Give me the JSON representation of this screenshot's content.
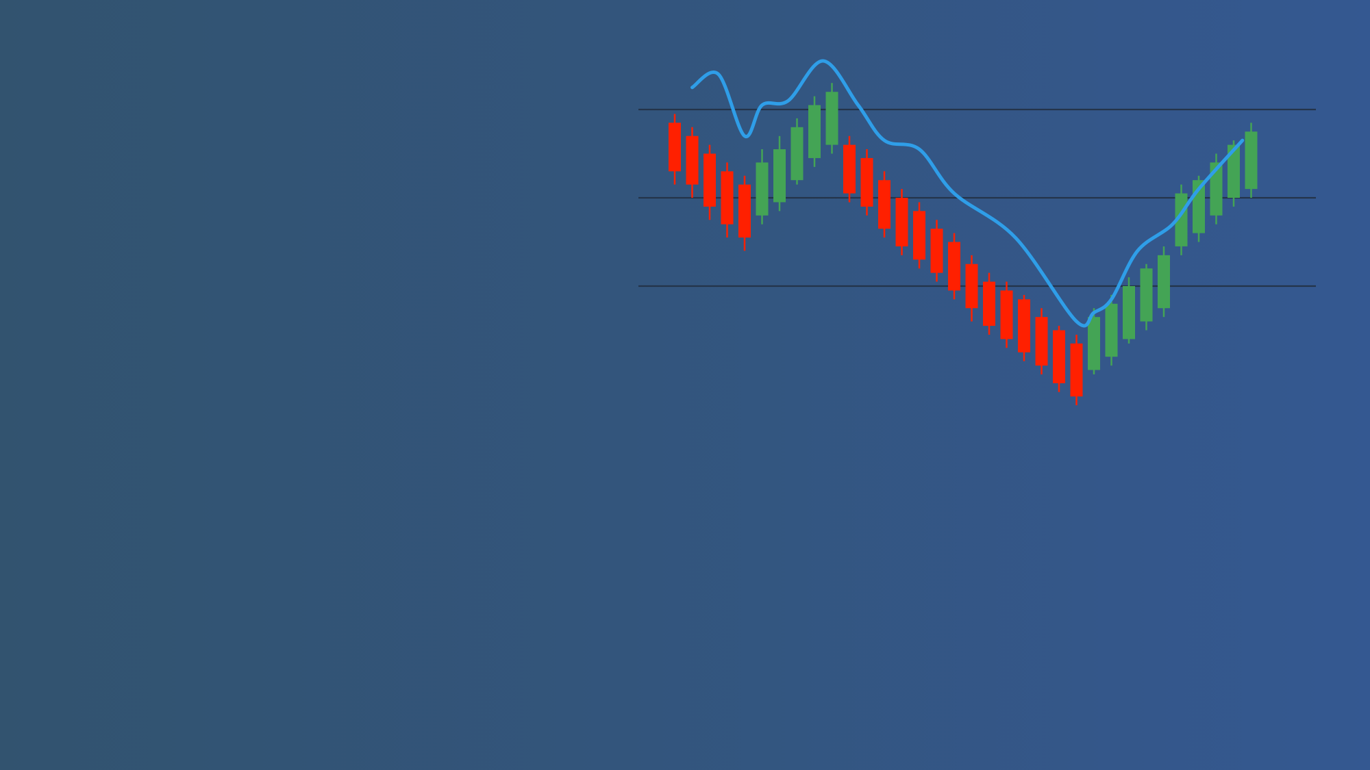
{
  "chart_data": {
    "type": "candlestick",
    "title": "",
    "xlabel": "",
    "ylabel": "",
    "ylim": [
      0,
      100
    ],
    "grid_lines": [
      90,
      70,
      50
    ],
    "colors": {
      "up": "#44a455",
      "down": "#ff2000",
      "line": "#2f9ee8",
      "grid": "#24344a"
    },
    "candles": [
      {
        "o": 87,
        "h": 89,
        "l": 73,
        "c": 76
      },
      {
        "o": 84,
        "h": 86,
        "l": 70,
        "c": 73
      },
      {
        "o": 80,
        "h": 82,
        "l": 65,
        "c": 68
      },
      {
        "o": 76,
        "h": 78,
        "l": 61,
        "c": 64
      },
      {
        "o": 73,
        "h": 75,
        "l": 58,
        "c": 61
      },
      {
        "o": 66,
        "h": 81,
        "l": 64,
        "c": 78
      },
      {
        "o": 69,
        "h": 84,
        "l": 67,
        "c": 81
      },
      {
        "o": 74,
        "h": 88,
        "l": 73,
        "c": 86
      },
      {
        "o": 79,
        "h": 93,
        "l": 77,
        "c": 91
      },
      {
        "o": 82,
        "h": 96,
        "l": 80,
        "c": 94
      },
      {
        "o": 82,
        "h": 84,
        "l": 69,
        "c": 71
      },
      {
        "o": 79,
        "h": 81,
        "l": 66,
        "c": 68
      },
      {
        "o": 74,
        "h": 76,
        "l": 61,
        "c": 63
      },
      {
        "o": 70,
        "h": 72,
        "l": 57,
        "c": 59
      },
      {
        "o": 67,
        "h": 69,
        "l": 54,
        "c": 56
      },
      {
        "o": 63,
        "h": 65,
        "l": 51,
        "c": 53
      },
      {
        "o": 60,
        "h": 62,
        "l": 47,
        "c": 49
      },
      {
        "o": 55,
        "h": 57,
        "l": 42,
        "c": 45
      },
      {
        "o": 51,
        "h": 53,
        "l": 39,
        "c": 41
      },
      {
        "o": 49,
        "h": 51,
        "l": 36,
        "c": 38
      },
      {
        "o": 47,
        "h": 48,
        "l": 33,
        "c": 35
      },
      {
        "o": 43,
        "h": 45,
        "l": 30,
        "c": 32
      },
      {
        "o": 40,
        "h": 41,
        "l": 26,
        "c": 28
      },
      {
        "o": 37,
        "h": 39,
        "l": 23,
        "c": 25
      },
      {
        "o": 31,
        "h": 45,
        "l": 30,
        "c": 43
      },
      {
        "o": 34,
        "h": 48,
        "l": 32,
        "c": 46
      },
      {
        "o": 38,
        "h": 52,
        "l": 37,
        "c": 50
      },
      {
        "o": 42,
        "h": 55,
        "l": 40,
        "c": 54
      },
      {
        "o": 45,
        "h": 59,
        "l": 43,
        "c": 57
      },
      {
        "o": 59,
        "h": 73,
        "l": 57,
        "c": 71
      },
      {
        "o": 62,
        "h": 75,
        "l": 60,
        "c": 74
      },
      {
        "o": 66,
        "h": 80,
        "l": 64,
        "c": 78
      },
      {
        "o": 70,
        "h": 83,
        "l": 68,
        "c": 82
      },
      {
        "o": 72,
        "h": 87,
        "l": 70,
        "c": 85
      }
    ],
    "line": [
      {
        "x": 1.0,
        "y": 95
      },
      {
        "x": 2.5,
        "y": 98
      },
      {
        "x": 4.0,
        "y": 84
      },
      {
        "x": 5.0,
        "y": 91
      },
      {
        "x": 6.5,
        "y": 92
      },
      {
        "x": 8.5,
        "y": 101
      },
      {
        "x": 10.5,
        "y": 91
      },
      {
        "x": 12.0,
        "y": 83
      },
      {
        "x": 14.0,
        "y": 81
      },
      {
        "x": 16.0,
        "y": 71
      },
      {
        "x": 19.5,
        "y": 61
      },
      {
        "x": 23.0,
        "y": 42
      },
      {
        "x": 24.0,
        "y": 44
      },
      {
        "x": 25.0,
        "y": 47
      },
      {
        "x": 26.5,
        "y": 58
      },
      {
        "x": 28.5,
        "y": 64
      },
      {
        "x": 30.0,
        "y": 72
      },
      {
        "x": 32.5,
        "y": 83
      }
    ]
  }
}
